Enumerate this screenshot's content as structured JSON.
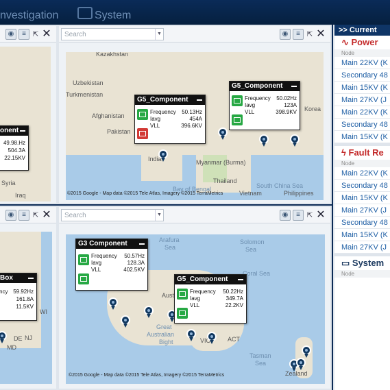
{
  "header": {
    "tabs": [
      {
        "label": "nvestigation"
      },
      {
        "label": "System"
      }
    ]
  },
  "panels": {
    "search_placeholder": "Search",
    "copyright": "©2015 Google - Map data ©2015 Tele Atlas, Imagery ©2015 TerraMetrics"
  },
  "map_tl": {
    "labels": [
      "Syria",
      "Iraq"
    ],
    "popup": {
      "title": "onent",
      "values": [
        "49.98.Hz",
        "504.3A",
        "22.15KV"
      ]
    }
  },
  "map_tr": {
    "labels": {
      "kazakhstan": "Kazakhstan",
      "uzbekistan": "Uzbekistan",
      "turkmenistan": "Turkmenistan",
      "afghanistan": "Afghanistan",
      "pakistan": "Pakistan",
      "india": "India",
      "myanmar": "Myanmar (Burma)",
      "thailand": "Thailand",
      "bay": "Bay of Bengal",
      "vietnam": "Vietnam",
      "philippines": "Philippines",
      "korea": "Korea",
      "china_sea": "South China Sea"
    },
    "popup_a": {
      "title": "G5_Component",
      "k1": "Frequency",
      "k2": "Iavg",
      "k3": "VLL",
      "v1": "50.13Hz",
      "v2": "454A",
      "v3": "396.6KV"
    },
    "popup_b": {
      "title": "G5_Component",
      "k1": "Frequency",
      "k2": "Iavg",
      "k3": "VLL",
      "v1": "50.02Hz",
      "v2": "123A",
      "v3": "398.9KV"
    }
  },
  "map_bl": {
    "labels": [
      "NJ",
      "DE",
      "MD",
      "WI"
    ],
    "popup": {
      "title": "Box",
      "values": [
        "59.92Hz",
        "161.8A",
        "11.5KV"
      ],
      "keys": [
        "ncy",
        "",
        ""
      ]
    }
  },
  "map_br": {
    "labels": {
      "arafura": "Arafura",
      "sea1": "Sea",
      "solomon": "Solomon",
      "sea2": "Sea",
      "coral": "Coral Sea",
      "austra": "Austra",
      "great": "Great",
      "australian": "Australian",
      "bight": "Bight",
      "tasman": "Tasman",
      "sea3": "Sea",
      "act": "ACT",
      "vic": "VIC",
      "zealand": "Zealand"
    },
    "popup_a": {
      "title": "G3 Component",
      "k1": "Frequency",
      "k2": "Iavg",
      "k3": "VLL",
      "v1": "50.57Hz",
      "v2": "128.3A",
      "v3": "402.5KV"
    },
    "popup_b": {
      "title": "G5_Component",
      "k1": "Frequency",
      "k2": "Iavg",
      "k3": "VLL",
      "v1": "50.22Hz",
      "v2": "349.7A",
      "v3": "22.2KV"
    }
  },
  "sidebar": {
    "header": ">> Current",
    "power": {
      "title": "Power",
      "col": "Node",
      "items": [
        "Main 22KV (K",
        "Secondary 48",
        "Main 15KV (K",
        "Main 27KV (J",
        "Main 22KV (K",
        "Secondary 48",
        "Main 15KV (K"
      ]
    },
    "fault": {
      "title": "Fault Re",
      "col": "Node",
      "items": [
        "Main 22KV (K",
        "Secondary 48",
        "Main 15KV (K",
        "Main 27KV (J",
        "Secondary 48",
        "Main 15KV (K",
        "Main 27KV (J"
      ]
    },
    "system": {
      "title": "System",
      "col": "Node"
    }
  },
  "colors": {
    "accent": "#0f3566",
    "power_red": "#c42b2b",
    "link": "#1f5fa5",
    "ok_green": "#27a844",
    "alarm_red": "#d23a36"
  }
}
